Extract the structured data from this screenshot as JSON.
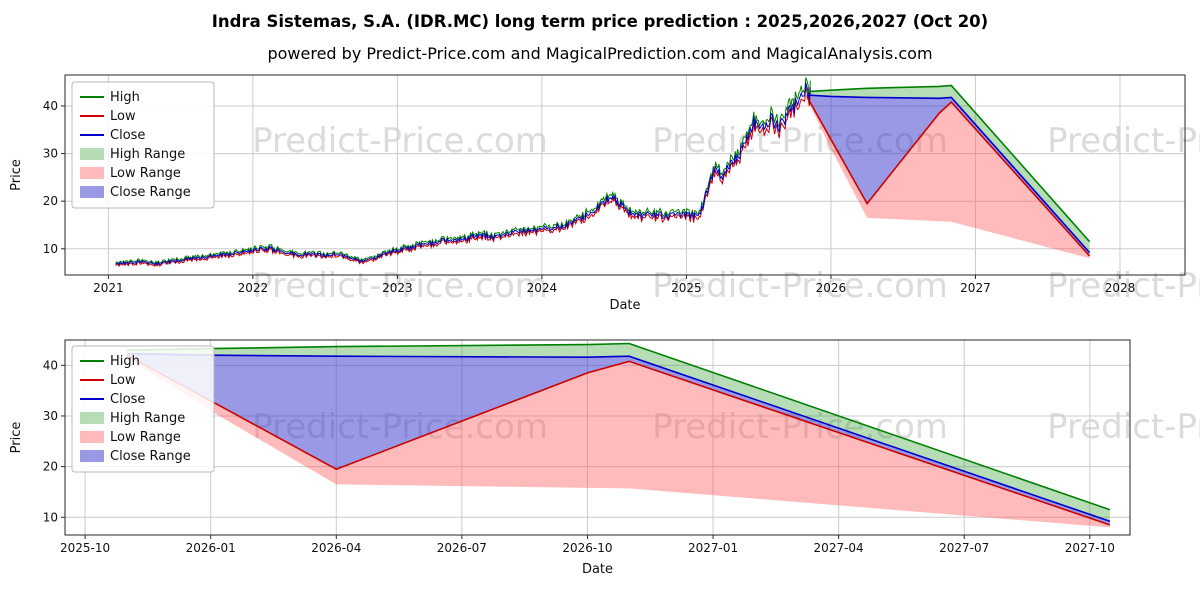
{
  "page": {
    "title": "Indra Sistemas, S.A. (IDR.MC) long term price prediction : 2025,2026,2027 (Oct 20)",
    "subtitle": "powered by Predict-Price.com and MagicalPrediction.com and MagicalAnalysis.com"
  },
  "watermark": {
    "text": "Predict-Price.com",
    "color": "#bdbdbd",
    "opacity": 0.55
  },
  "colors": {
    "high": "#008000",
    "low": "#cc0000",
    "close": "#0000cc",
    "high_range": {
      "color": "#2e9e2e",
      "opacity": 0.35
    },
    "low_range": {
      "color": "#ff5555",
      "opacity": 0.4
    },
    "close_range": {
      "color": "#3333cc",
      "opacity": 0.5
    },
    "grid": "#cccccc",
    "spine": "#262626",
    "text": "#111111"
  },
  "legend": {
    "items": [
      {
        "label": "High",
        "swatch": "line",
        "color": "high",
        "name": "high"
      },
      {
        "label": "Low",
        "swatch": "line",
        "color": "low",
        "name": "low"
      },
      {
        "label": "Close",
        "swatch": "line",
        "color": "close",
        "name": "close"
      },
      {
        "label": "High Range",
        "swatch": "patch",
        "color": "high_range",
        "name": "high-range"
      },
      {
        "label": "Low Range",
        "swatch": "patch",
        "color": "low_range",
        "name": "low-range"
      },
      {
        "label": "Close Range",
        "swatch": "patch",
        "color": "close_range",
        "name": "close-range"
      }
    ]
  },
  "bands": [
    {
      "label": "High Range",
      "upper": "high",
      "lower": "close",
      "fill": "high_range"
    },
    {
      "label": "Low Range",
      "upper": "low",
      "lower": "low_lower",
      "fill": "low_range"
    },
    {
      "label": "Close Range",
      "upper": "close",
      "lower": "low",
      "fill": "close_range"
    }
  ],
  "chart_data": [
    {
      "type": "line",
      "title": "",
      "xlabel": "Date",
      "ylabel": "Price",
      "xlim": [
        2020.7,
        2028.45
      ],
      "ylim": [
        4.5,
        46.5
      ],
      "grid": true,
      "legend_position": "upper left",
      "xticks": {
        "values": [
          2021,
          2022,
          2023,
          2024,
          2025,
          2026,
          2027,
          2028
        ],
        "labels": [
          "2021",
          "2022",
          "2023",
          "2024",
          "2025",
          "2026",
          "2027",
          "2028"
        ]
      },
      "yticks": {
        "values": [
          10,
          20,
          30,
          40
        ],
        "labels": [
          "10",
          "20",
          "30",
          "40"
        ]
      },
      "historical": {
        "description": "approximate daily close key points 2021 - Oct 2025; high/low drawn as noisy band around close",
        "seed": 77,
        "step": 0.008,
        "noise_amp_frac": 0.045,
        "hl_offset_frac": 0.028,
        "key_points": [
          [
            2021.05,
            6.9
          ],
          [
            2021.15,
            7.1
          ],
          [
            2021.25,
            7.3
          ],
          [
            2021.32,
            6.8
          ],
          [
            2021.42,
            7.2
          ],
          [
            2021.52,
            7.8
          ],
          [
            2021.62,
            8.1
          ],
          [
            2021.72,
            8.5
          ],
          [
            2021.82,
            8.8
          ],
          [
            2021.92,
            9.2
          ],
          [
            2022.02,
            9.8
          ],
          [
            2022.12,
            10.1
          ],
          [
            2022.2,
            9.4
          ],
          [
            2022.3,
            8.7
          ],
          [
            2022.42,
            8.9
          ],
          [
            2022.5,
            8.5
          ],
          [
            2022.58,
            8.9
          ],
          [
            2022.66,
            8.4
          ],
          [
            2022.74,
            7.3
          ],
          [
            2022.84,
            8.1
          ],
          [
            2022.94,
            9.3
          ],
          [
            2023.04,
            10.0
          ],
          [
            2023.14,
            10.6
          ],
          [
            2023.24,
            11.2
          ],
          [
            2023.34,
            11.9
          ],
          [
            2023.42,
            11.6
          ],
          [
            2023.5,
            12.4
          ],
          [
            2023.58,
            12.9
          ],
          [
            2023.66,
            12.5
          ],
          [
            2023.76,
            13.2
          ],
          [
            2023.86,
            13.6
          ],
          [
            2023.96,
            14.1
          ],
          [
            2024.06,
            14.3
          ],
          [
            2024.16,
            14.9
          ],
          [
            2024.26,
            16.2
          ],
          [
            2024.34,
            17.8
          ],
          [
            2024.42,
            19.8
          ],
          [
            2024.47,
            21.0
          ],
          [
            2024.53,
            19.8
          ],
          [
            2024.58,
            18.0
          ],
          [
            2024.64,
            17.0
          ],
          [
            2024.76,
            17.1
          ],
          [
            2024.88,
            16.9
          ],
          [
            2025.0,
            17.0
          ],
          [
            2025.08,
            16.8
          ],
          [
            2025.12,
            19.5
          ],
          [
            2025.16,
            24.0
          ],
          [
            2025.2,
            26.5
          ],
          [
            2025.25,
            25.2
          ],
          [
            2025.3,
            27.6
          ],
          [
            2025.36,
            29.0
          ],
          [
            2025.42,
            33.5
          ],
          [
            2025.46,
            36.5
          ],
          [
            2025.5,
            35.0
          ],
          [
            2025.55,
            36.4
          ],
          [
            2025.59,
            37.8
          ],
          [
            2025.63,
            35.6
          ],
          [
            2025.67,
            37.1
          ],
          [
            2025.71,
            38.6
          ],
          [
            2025.75,
            40.1
          ],
          [
            2025.79,
            41.8
          ],
          [
            2025.83,
            43.4
          ],
          [
            2025.86,
            42.4
          ]
        ]
      },
      "prediction": {
        "x": [
          2025.833,
          2026.0,
          2026.25,
          2026.75,
          2026.833,
          2027.79
        ],
        "x_labels": [
          "2025-11",
          "2026-01",
          "2026-04",
          "2026-10",
          "2026-11",
          "2027-10"
        ],
        "high": [
          43.0,
          43.3,
          43.7,
          44.1,
          44.3,
          11.5
        ],
        "close": [
          42.3,
          42.0,
          41.8,
          41.6,
          41.8,
          9.2
        ],
        "low": [
          42.0,
          33.0,
          19.5,
          38.5,
          40.8,
          8.5
        ],
        "low_lower": [
          41.5,
          31.0,
          16.5,
          15.8,
          15.7,
          8.0
        ]
      }
    },
    {
      "type": "line",
      "title": "",
      "xlabel": "Date",
      "ylabel": "Price",
      "xlim": [
        2025.71,
        2027.83
      ],
      "ylim": [
        6.5,
        45
      ],
      "grid": true,
      "legend_position": "upper left",
      "xticks": {
        "values": [
          2025.75,
          2026.0,
          2026.25,
          2026.5,
          2026.75,
          2027.0,
          2027.25,
          2027.5,
          2027.75
        ],
        "labels": [
          "2025-10",
          "2026-01",
          "2026-04",
          "2026-07",
          "2026-10",
          "2027-01",
          "2027-04",
          "2027-07",
          "2027-10"
        ]
      },
      "yticks": {
        "values": [
          10,
          20,
          30,
          40
        ],
        "labels": [
          "10",
          "20",
          "30",
          "40"
        ]
      },
      "prediction": {
        "x": [
          2025.833,
          2026.0,
          2026.25,
          2026.75,
          2026.833,
          2027.79
        ],
        "x_labels": [
          "2025-11",
          "2026-01",
          "2026-04",
          "2026-10",
          "2026-11",
          "2027-10"
        ],
        "high": [
          43.0,
          43.3,
          43.7,
          44.1,
          44.3,
          11.5
        ],
        "close": [
          42.3,
          42.0,
          41.8,
          41.6,
          41.8,
          9.2
        ],
        "low": [
          42.0,
          33.0,
          19.5,
          38.5,
          40.8,
          8.5
        ],
        "low_lower": [
          41.5,
          31.0,
          16.5,
          15.8,
          15.7,
          8.0
        ]
      }
    }
  ]
}
